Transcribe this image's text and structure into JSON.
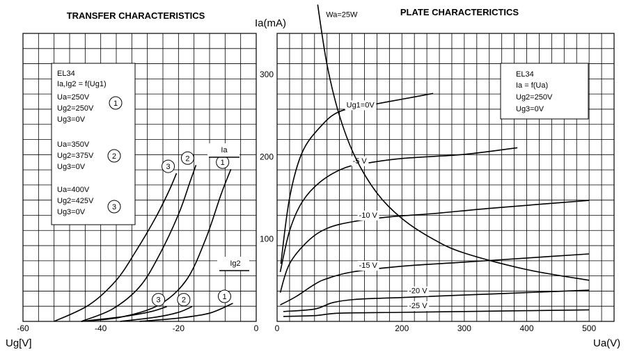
{
  "chart_data": [
    {
      "type": "line",
      "title": "TRANSFER CHARACTERISTICS",
      "xlabel": "Ug[V]",
      "xlim": [
        -60,
        0
      ],
      "ylim": [
        0,
        350
      ],
      "x_ticks": [
        "-60",
        "-40",
        "-20",
        "0"
      ],
      "grid": true,
      "legend": {
        "tube": "EL34",
        "function": "Ia,Ig2 = f(Ug1)",
        "conditions": [
          {
            "id": "1",
            "lines": [
              "Ua=250V",
              "Ug2=250V",
              "Ug3=0V"
            ]
          },
          {
            "id": "2",
            "lines": [
              "Ua=350V",
              "Ug2=375V",
              "Ug3=0V"
            ]
          },
          {
            "id": "3",
            "lines": [
              "Ua=400V",
              "Ug2=425V",
              "Ug3=0V"
            ]
          }
        ]
      },
      "group_labels": [
        "Ia",
        "Ig2"
      ],
      "series": [
        {
          "name": "1",
          "group": "Ia",
          "x": [
            -45,
            -35,
            -25,
            -18,
            -13,
            -9,
            -6.5
          ],
          "y": [
            0,
            5,
            20,
            50,
            100,
            155,
            185
          ]
        },
        {
          "name": "2",
          "group": "Ia",
          "x": [
            -45,
            -37,
            -30,
            -25,
            -20,
            -17,
            -15.5
          ],
          "y": [
            0,
            15,
            42,
            80,
            130,
            170,
            190
          ]
        },
        {
          "name": "3",
          "group": "Ia",
          "x": [
            -52,
            -43,
            -36,
            -31,
            -26,
            -22.5,
            -20.5
          ],
          "y": [
            0,
            20,
            50,
            85,
            125,
            158,
            180
          ]
        },
        {
          "name": "1",
          "group": "Ig2",
          "x": [
            -30,
            -20,
            -12,
            -6
          ],
          "y": [
            0,
            4,
            10,
            22
          ]
        },
        {
          "name": "2",
          "group": "Ig2",
          "x": [
            -35,
            -26,
            -20,
            -16.5
          ],
          "y": [
            0,
            5,
            11,
            18
          ]
        },
        {
          "name": "3",
          "group": "Ig2",
          "x": [
            -45,
            -34,
            -27,
            -23
          ],
          "y": [
            0,
            6,
            12,
            18
          ]
        }
      ]
    },
    {
      "type": "line",
      "title": "PLATE CHARACTERICTICS",
      "xlabel": "Ua(V)",
      "ylabel": "Ia(mA)",
      "xlim": [
        0,
        540
      ],
      "ylim": [
        0,
        350
      ],
      "x_ticks": [
        "0",
        "200",
        "300",
        "400",
        "500"
      ],
      "y_ticks": [
        "100",
        "200",
        "300"
      ],
      "grid": true,
      "legend": {
        "tube": "EL34",
        "function": "Ia = f(Ua)",
        "conditions": [
          "Ug2=250V",
          "Ug3=0V"
        ]
      },
      "series": [
        {
          "name": "Ug1=0V",
          "x": [
            6,
            20,
            40,
            70,
            100,
            150,
            200,
            250
          ],
          "y": [
            70,
            150,
            205,
            237,
            255,
            263,
            270,
            277
          ]
        },
        {
          "name": "-5 V",
          "x": [
            5,
            20,
            40,
            70,
            110,
            150,
            200,
            300,
            385
          ],
          "y": [
            60,
            110,
            145,
            170,
            187,
            193,
            198,
            203,
            211
          ]
        },
        {
          "name": "-10 V",
          "x": [
            5,
            20,
            50,
            80,
            120,
            180,
            250,
            350,
            500
          ],
          "y": [
            35,
            70,
            98,
            113,
            121,
            127,
            131,
            138,
            147
          ]
        },
        {
          "name": "-15 V",
          "x": [
            5,
            30,
            60,
            80,
            120,
            200,
            300,
            400,
            500
          ],
          "y": [
            20,
            30,
            45,
            52,
            60,
            67,
            72,
            77,
            82
          ]
        },
        {
          "name": "-20 V",
          "x": [
            10,
            60,
            90,
            130,
            200,
            300,
            400,
            500
          ],
          "y": [
            12,
            15,
            23,
            27,
            29,
            32,
            35,
            38
          ]
        },
        {
          "name": "-25 V",
          "x": [
            10,
            60,
            100,
            200,
            300,
            400,
            500
          ],
          "y": [
            6,
            7,
            10,
            11,
            12,
            13,
            14
          ]
        },
        {
          "name": "Wa=25W",
          "x": [
            65,
            80,
            100,
            125,
            160,
            200,
            250,
            300,
            400,
            500
          ],
          "y": [
            385,
            312,
            250,
            200,
            156,
            125,
            100,
            83,
            63,
            50
          ]
        }
      ]
    }
  ]
}
